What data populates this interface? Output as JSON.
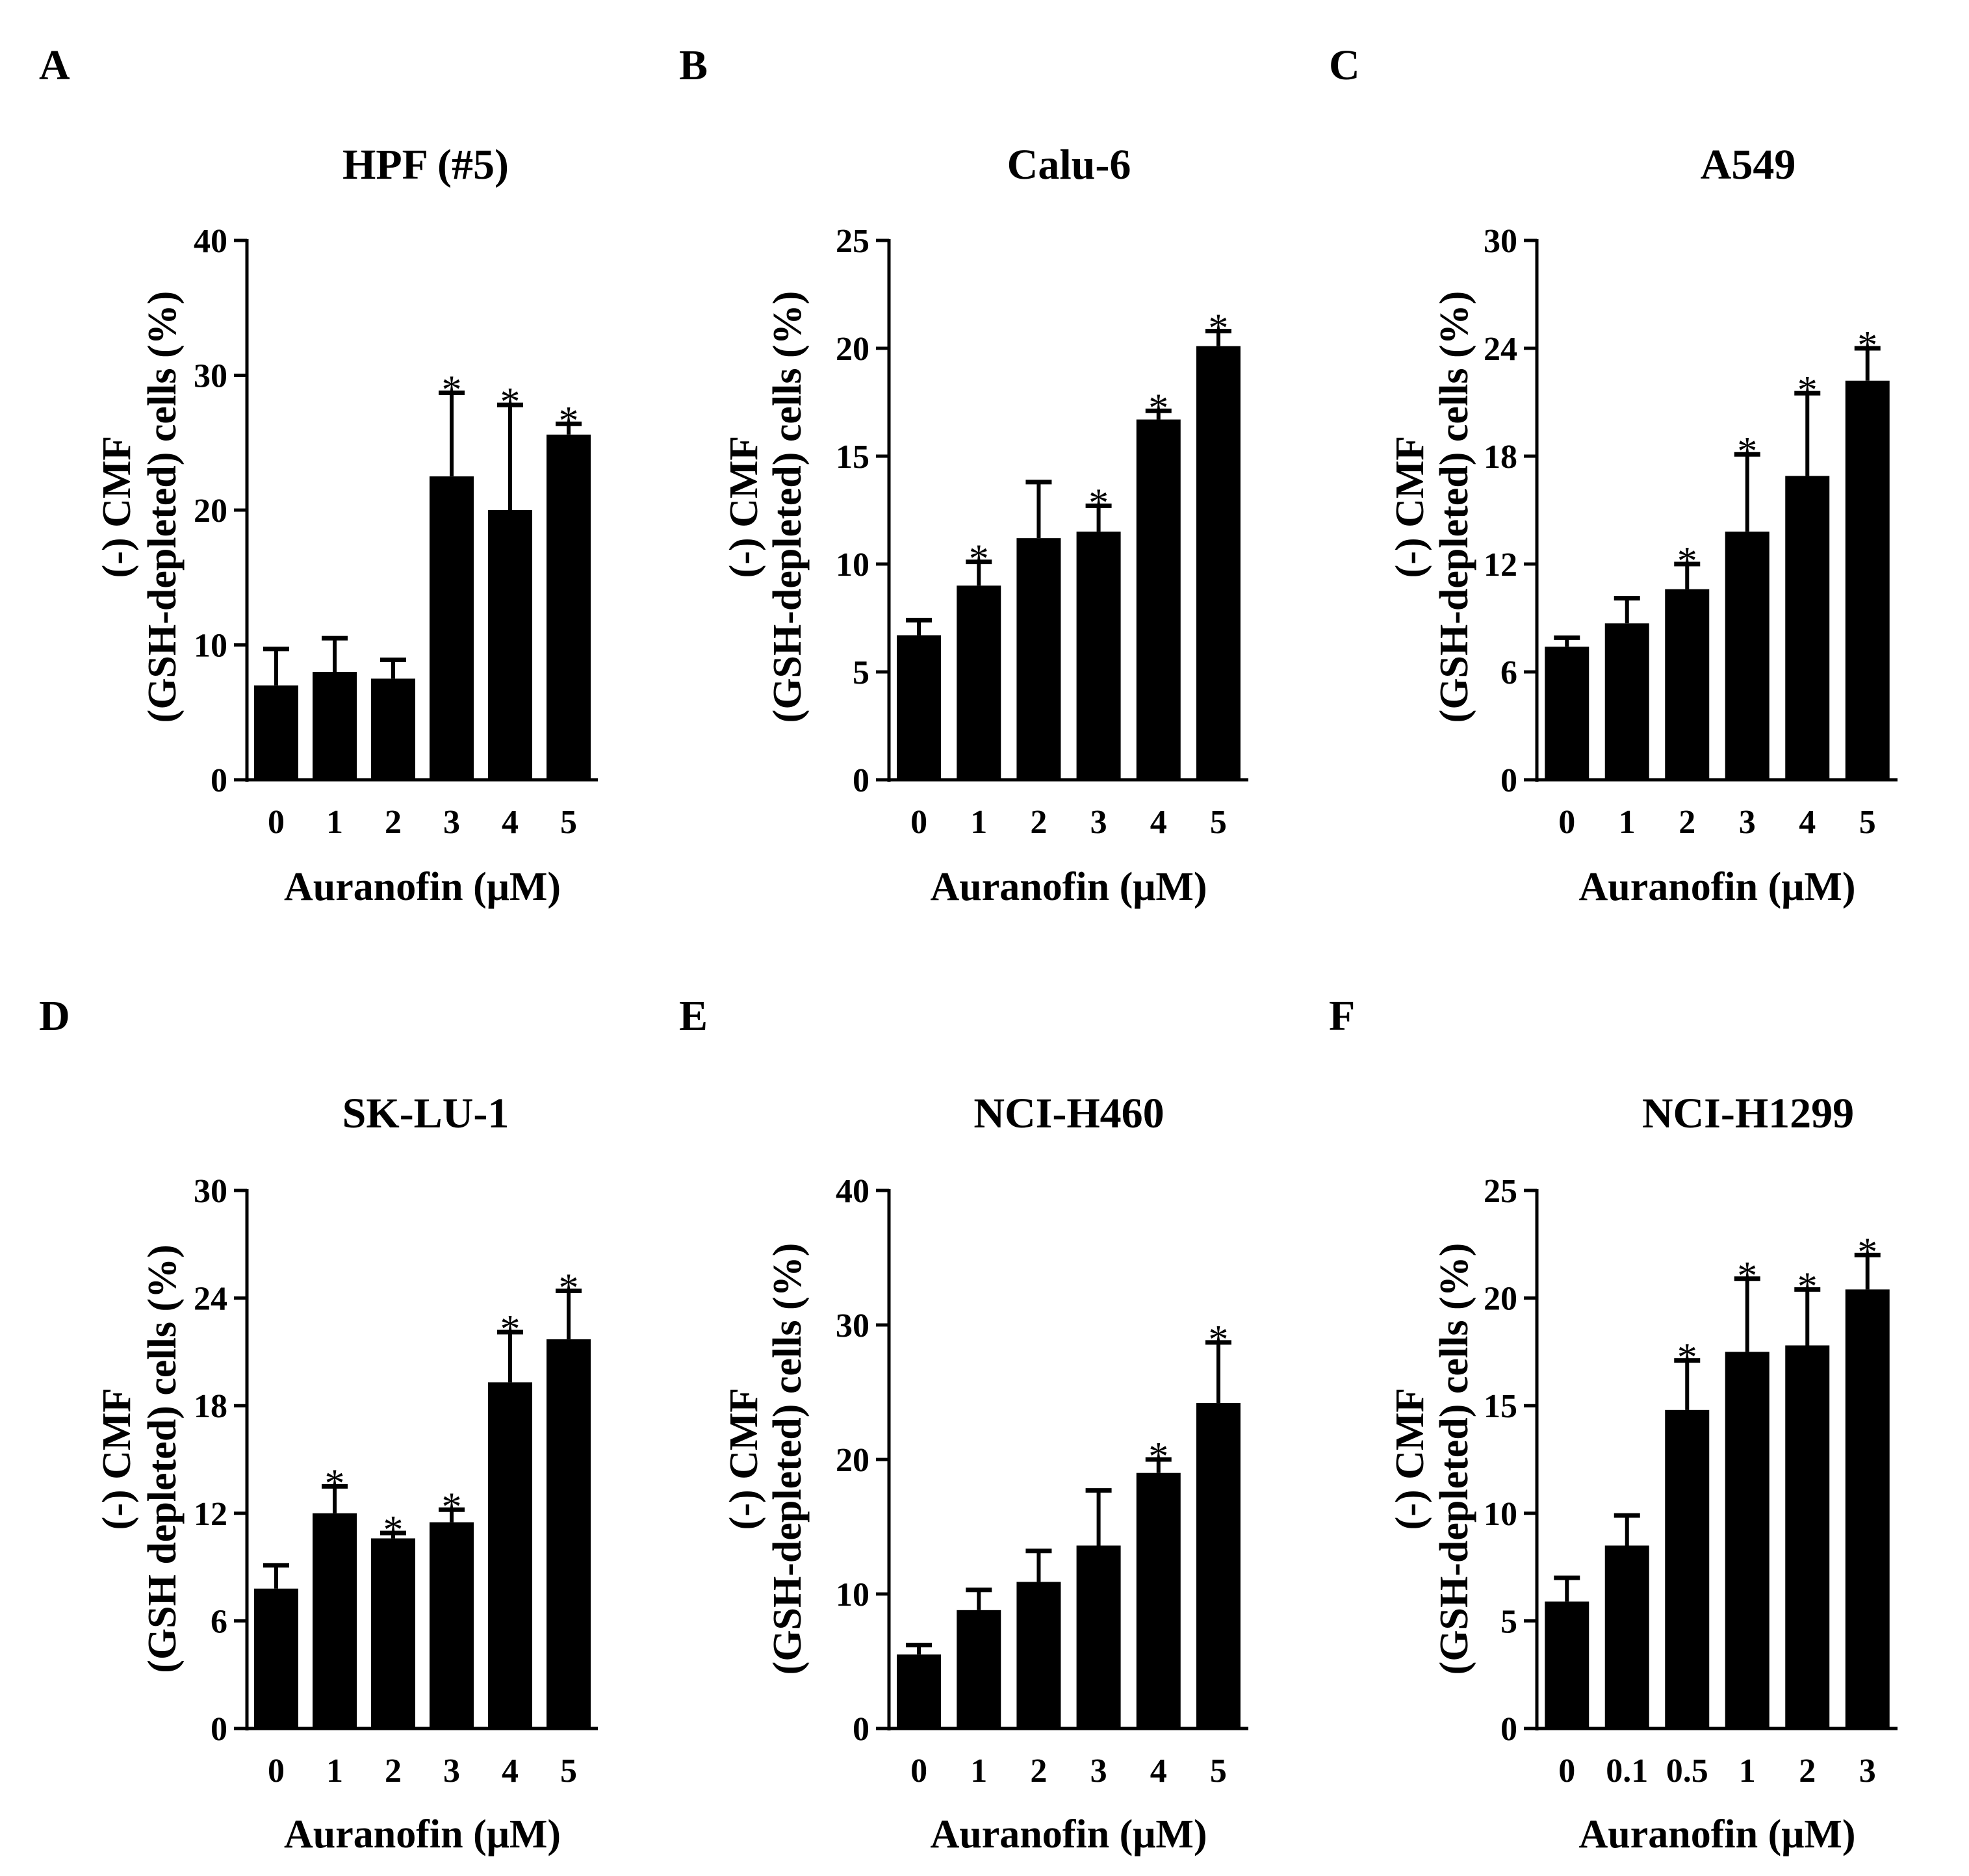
{
  "figure": {
    "colors": {
      "bar": "#000000",
      "axis": "#000000",
      "background": "#ffffff"
    },
    "charts": [
      {
        "letter": "A",
        "chart_data": {
          "type": "bar",
          "title": "HPF (#5)",
          "xlabel": "Auranofin (μM)",
          "ylabel": [
            "(-) CMF",
            "(GSH-depleted) cells (%)"
          ],
          "categories": [
            "0",
            "1",
            "2",
            "3",
            "4",
            "5"
          ],
          "values": [
            7.0,
            8.0,
            7.5,
            22.5,
            20.0,
            25.6
          ],
          "errors": [
            2.7,
            2.5,
            1.4,
            6.2,
            7.8,
            0.8
          ],
          "significant": [
            false,
            false,
            false,
            true,
            true,
            true
          ],
          "significance_marker": "*",
          "ylim": [
            0,
            40
          ],
          "yticks": [
            "0",
            "10",
            "20",
            "30",
            "40"
          ]
        }
      },
      {
        "letter": "B",
        "chart_data": {
          "type": "bar",
          "title": "Calu-6",
          "xlabel": "Auranofin (μM)",
          "ylabel": [
            "(-) CMF",
            "(GSH-depleted) cells (%)"
          ],
          "categories": [
            "0",
            "1",
            "2",
            "3",
            "4",
            "5"
          ],
          "values": [
            6.7,
            9.0,
            11.2,
            11.5,
            16.7,
            20.1
          ],
          "errors": [
            0.7,
            1.1,
            2.6,
            1.2,
            0.4,
            0.7
          ],
          "significant": [
            false,
            true,
            false,
            true,
            true,
            true
          ],
          "significance_marker": "*",
          "ylim": [
            0,
            25
          ],
          "yticks": [
            "0",
            "5",
            "10",
            "15",
            "20",
            "25"
          ]
        }
      },
      {
        "letter": "C",
        "chart_data": {
          "type": "bar",
          "title": "A549",
          "xlabel": "Auranofin (μM)",
          "ylabel": [
            "(-) CMF",
            "(GSH-depleted) cells (%)"
          ],
          "categories": [
            "0",
            "1",
            "2",
            "3",
            "4",
            "5"
          ],
          "values": [
            7.4,
            8.7,
            10.6,
            13.8,
            16.9,
            22.2
          ],
          "errors": [
            0.5,
            1.4,
            1.4,
            4.3,
            4.6,
            1.8
          ],
          "significant": [
            false,
            false,
            true,
            true,
            true,
            true
          ],
          "significance_marker": "*",
          "ylim": [
            0,
            30
          ],
          "yticks": [
            "0",
            "6",
            "12",
            "18",
            "24",
            "30"
          ]
        }
      },
      {
        "letter": "D",
        "chart_data": {
          "type": "bar",
          "title": "SK-LU-1",
          "xlabel": "Auranofin (μM)",
          "ylabel": [
            "(-) CMF",
            "(GSH depleted) cells (%)"
          ],
          "categories": [
            "0",
            "1",
            "2",
            "3",
            "4",
            "5"
          ],
          "values": [
            7.8,
            12.0,
            10.6,
            11.5,
            19.3,
            21.7
          ],
          "errors": [
            1.3,
            1.5,
            0.3,
            0.7,
            2.8,
            2.7
          ],
          "significant": [
            false,
            true,
            true,
            true,
            true,
            true
          ],
          "significance_marker": "*",
          "ylim": [
            0,
            30
          ],
          "yticks": [
            "0",
            "6",
            "12",
            "18",
            "24",
            "30"
          ]
        }
      },
      {
        "letter": "E",
        "chart_data": {
          "type": "bar",
          "title": "NCI-H460",
          "xlabel": "Auranofin (μM)",
          "ylabel": [
            "(-) CMF",
            "(GSH-depleted) cells (%)"
          ],
          "categories": [
            "0",
            "1",
            "2",
            "3",
            "4",
            "5"
          ],
          "values": [
            5.5,
            8.8,
            10.9,
            13.6,
            19.0,
            24.2
          ],
          "errors": [
            0.7,
            1.5,
            2.3,
            4.1,
            1.0,
            4.5
          ],
          "significant": [
            false,
            false,
            false,
            false,
            true,
            true
          ],
          "significance_marker": "*",
          "ylim": [
            0,
            40
          ],
          "yticks": [
            "0",
            "10",
            "20",
            "30",
            "40"
          ]
        }
      },
      {
        "letter": "F",
        "chart_data": {
          "type": "bar",
          "title": "NCI-H1299",
          "xlabel": "Auranofin (μM)",
          "ylabel": [
            "(-) CMF",
            "(GSH-depleted) cells (%)"
          ],
          "categories": [
            "0",
            "0.1",
            "0.5",
            "1",
            "2",
            "3"
          ],
          "values": [
            5.9,
            8.5,
            14.8,
            17.5,
            17.8,
            20.4
          ],
          "errors": [
            1.1,
            1.4,
            2.3,
            3.4,
            2.6,
            1.6
          ],
          "significant": [
            false,
            false,
            true,
            true,
            true,
            true
          ],
          "significance_marker": "*",
          "ylim": [
            0,
            25
          ],
          "yticks": [
            "0",
            "5",
            "10",
            "15",
            "20",
            "25"
          ]
        }
      }
    ]
  }
}
